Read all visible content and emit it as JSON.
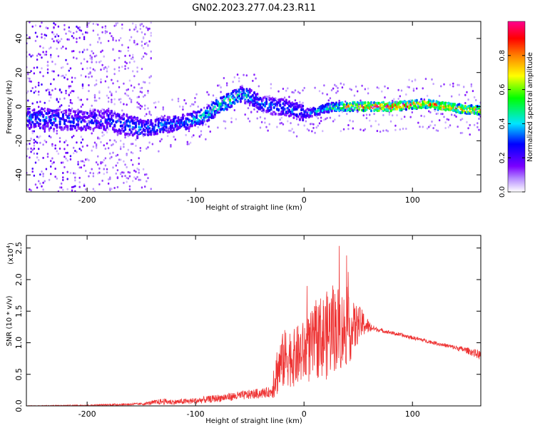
{
  "title": "GN02.2023.277.04.23.R11",
  "chart_data": [
    {
      "type": "heatmap",
      "title": "GN02.2023.277.04.23.R11",
      "xlabel": "Height of straight line (km)",
      "ylabel": "Frequency (Hz)",
      "xlim": [
        -256,
        163
      ],
      "ylim": [
        -50,
        50
      ],
      "xticks": [
        -200,
        -100,
        0,
        100
      ],
      "yticks": [
        -40,
        -20,
        0,
        20,
        40
      ],
      "colorbar": {
        "label": "Normalized spectral amplitude",
        "range": [
          0,
          1
        ],
        "ticks": [
          "0.0",
          "0.2",
          "0.4",
          "0.6",
          "0.8"
        ],
        "colors": [
          "#ffffff",
          "#7b00ff",
          "#0000ff",
          "#00e5ff",
          "#00ff00",
          "#ffff00",
          "#ff8000",
          "#ff0000",
          "#ff00a0"
        ]
      },
      "ridge": {
        "x": [
          -240,
          -210,
          -180,
          -150,
          -130,
          -110,
          -100,
          -90,
          -80,
          -70,
          -60,
          -50,
          -40,
          -30,
          -20,
          -10,
          0,
          10,
          20,
          30,
          40,
          60,
          80,
          100,
          110,
          120,
          140,
          160
        ],
        "y": [
          -7,
          -8,
          -8,
          -13,
          -11,
          -9,
          -7,
          -5,
          0,
          3,
          7,
          6,
          2,
          0,
          0,
          -2,
          -4,
          -3,
          -1,
          0,
          0,
          0,
          0,
          1,
          2,
          1,
          -1,
          -2
        ],
        "amplitude": [
          0.35,
          0.3,
          0.3,
          0.35,
          0.35,
          0.35,
          0.4,
          0.45,
          0.5,
          0.5,
          0.45,
          0.4,
          0.35,
          0.35,
          0.35,
          0.35,
          0.35,
          0.4,
          0.45,
          0.6,
          0.7,
          0.9,
          0.9,
          0.85,
          0.8,
          0.8,
          0.8,
          0.8
        ]
      }
    },
    {
      "type": "line",
      "xlabel": "Height of straight line (km)",
      "ylabel": "SNR (10 * v/v)",
      "yscale_label": "(x10",
      "yscale_exp": "4",
      "xlim": [
        -256,
        163
      ],
      "ylim": [
        0,
        2.7
      ],
      "xticks": [
        -200,
        -100,
        0,
        100
      ],
      "yticks": [
        "0.0",
        "0.5",
        "1.0",
        "1.5",
        "2.0",
        "2.5"
      ],
      "color": "#ee3333",
      "series": [
        {
          "x": [
            -256,
            -200,
            -150,
            -130,
            -120,
            -100,
            -80,
            -60,
            -40,
            -30,
            -28,
            -25,
            -20,
            -15,
            -10,
            -5,
            0,
            5,
            10,
            15,
            20,
            25,
            30,
            35,
            40,
            45,
            50,
            55,
            60,
            65,
            70,
            80,
            90,
            100,
            110,
            120,
            130,
            140,
            150,
            160,
            163
          ],
          "y": [
            0.0,
            0.01,
            0.03,
            0.07,
            0.06,
            0.08,
            0.12,
            0.16,
            0.2,
            0.22,
            0.4,
            0.55,
            0.7,
            0.8,
            0.75,
            0.8,
            0.85,
            0.9,
            1.0,
            1.1,
            1.1,
            1.2,
            1.25,
            1.2,
            1.2,
            1.2,
            1.3,
            1.3,
            1.25,
            1.22,
            1.2,
            1.16,
            1.12,
            1.08,
            1.04,
            1.0,
            0.96,
            0.92,
            0.88,
            0.82,
            0.8
          ],
          "noise": [
            0.005,
            0.01,
            0.02,
            0.05,
            0.04,
            0.05,
            0.06,
            0.07,
            0.08,
            0.08,
            0.3,
            0.4,
            0.45,
            0.5,
            0.45,
            0.5,
            0.5,
            0.55,
            0.6,
            0.65,
            0.7,
            0.7,
            0.7,
            0.65,
            0.55,
            0.45,
            0.3,
            0.2,
            0.1,
            0.04,
            0.03,
            0.03,
            0.03,
            0.03,
            0.03,
            0.03,
            0.03,
            0.04,
            0.05,
            0.07,
            0.08
          ]
        }
      ]
    }
  ]
}
